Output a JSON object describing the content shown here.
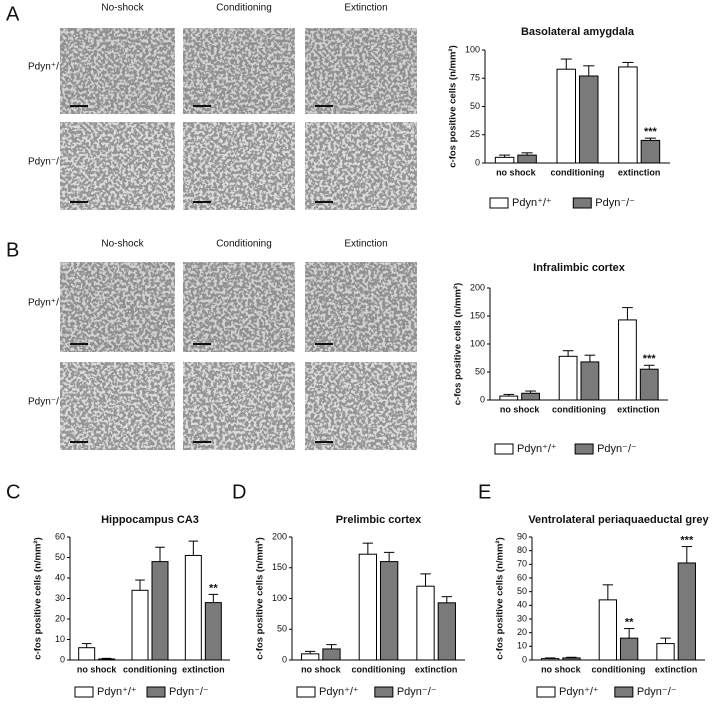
{
  "micrographs": [
    {
      "label": "A",
      "columns": [
        "No-shock",
        "Conditioning",
        "Extinction"
      ],
      "rows": [
        "Pdyn⁺/⁺",
        "Pdyn⁻/⁻"
      ]
    },
    {
      "label": "B",
      "columns": [
        "No-shock",
        "Conditioning",
        "Extinction"
      ],
      "rows": [
        "Pdyn⁺/⁺",
        "Pdyn⁻/⁻"
      ]
    }
  ],
  "panel_labels": [
    "C",
    "D",
    "E"
  ],
  "chart_data": [
    {
      "type": "bar",
      "title": "Basolateral amygdala",
      "y_label": "c-fos positive cells (n/mm²)",
      "categories": [
        "no shock",
        "conditioning",
        "extinction"
      ],
      "series": [
        {
          "name": "Pdyn⁺/⁺",
          "color": "#ffffff",
          "values": [
            5,
            83,
            85
          ],
          "errors": [
            2,
            9,
            4
          ]
        },
        {
          "name": "Pdyn⁻/⁻",
          "color": "#7a7a7a",
          "values": [
            7,
            77,
            20
          ],
          "errors": [
            2,
            9,
            2
          ],
          "significance": [
            null,
            null,
            "***"
          ]
        }
      ],
      "ylim": [
        0,
        100
      ],
      "yticks": [
        0,
        25,
        50,
        75,
        100
      ]
    },
    {
      "type": "bar",
      "title": "Infralimbic cortex",
      "y_label": "c-fos positive cells (n/mm²)",
      "categories": [
        "no shock",
        "conditioning",
        "extinction"
      ],
      "series": [
        {
          "name": "Pdyn⁺/⁺",
          "color": "#ffffff",
          "values": [
            7,
            78,
            143
          ],
          "errors": [
            3,
            10,
            22
          ]
        },
        {
          "name": "Pdyn⁻/⁻",
          "color": "#7a7a7a",
          "values": [
            12,
            68,
            55
          ],
          "errors": [
            4,
            12,
            7
          ],
          "significance": [
            null,
            null,
            "***"
          ]
        }
      ],
      "ylim": [
        0,
        200
      ],
      "yticks": [
        0,
        50,
        100,
        150,
        200
      ]
    },
    {
      "type": "bar",
      "title": "Hippocampus CA3",
      "y_label": "c-fos positive cells (n/mm²)",
      "categories": [
        "no shock",
        "conditioning",
        "extinction"
      ],
      "series": [
        {
          "name": "Pdyn⁺/⁺",
          "color": "#ffffff",
          "values": [
            6,
            34,
            51
          ],
          "errors": [
            2,
            5,
            7
          ]
        },
        {
          "name": "Pdyn⁻/⁻",
          "color": "#7a7a7a",
          "values": [
            0.5,
            48,
            28
          ],
          "errors": [
            0.3,
            7,
            4
          ],
          "significance": [
            null,
            null,
            "**"
          ]
        }
      ],
      "ylim": [
        0,
        60
      ],
      "yticks": [
        0,
        10,
        20,
        30,
        40,
        50,
        60
      ]
    },
    {
      "type": "bar",
      "title": "Prelimbic cortex",
      "y_label": "c-fos positive cells (n/mm²)",
      "categories": [
        "no shock",
        "conditioning",
        "extinction"
      ],
      "series": [
        {
          "name": "Pdyn⁺/⁺",
          "color": "#ffffff",
          "values": [
            10,
            172,
            120
          ],
          "errors": [
            4,
            18,
            20
          ]
        },
        {
          "name": "Pdyn⁻/⁻",
          "color": "#7a7a7a",
          "values": [
            18,
            160,
            93
          ],
          "errors": [
            7,
            15,
            10
          ]
        }
      ],
      "ylim": [
        0,
        200
      ],
      "yticks": [
        0,
        50,
        100,
        150,
        200
      ]
    },
    {
      "type": "bar",
      "title": "Ventrolateral periaquaeductal grey",
      "y_label": "c-fos positive cells (n/mm²)",
      "categories": [
        "no shock",
        "conditioning",
        "extinction"
      ],
      "series": [
        {
          "name": "Pdyn⁺/⁺",
          "color": "#ffffff",
          "values": [
            1,
            44,
            12
          ],
          "errors": [
            0.5,
            11,
            4
          ]
        },
        {
          "name": "Pdyn⁻/⁻",
          "color": "#7a7a7a",
          "values": [
            1.5,
            16,
            71
          ],
          "errors": [
            0.5,
            7,
            12
          ],
          "significance": [
            null,
            "**",
            "***"
          ]
        }
      ],
      "ylim": [
        0,
        90
      ],
      "yticks": [
        0,
        10,
        20,
        30,
        40,
        50,
        60,
        70,
        80,
        90
      ]
    }
  ]
}
